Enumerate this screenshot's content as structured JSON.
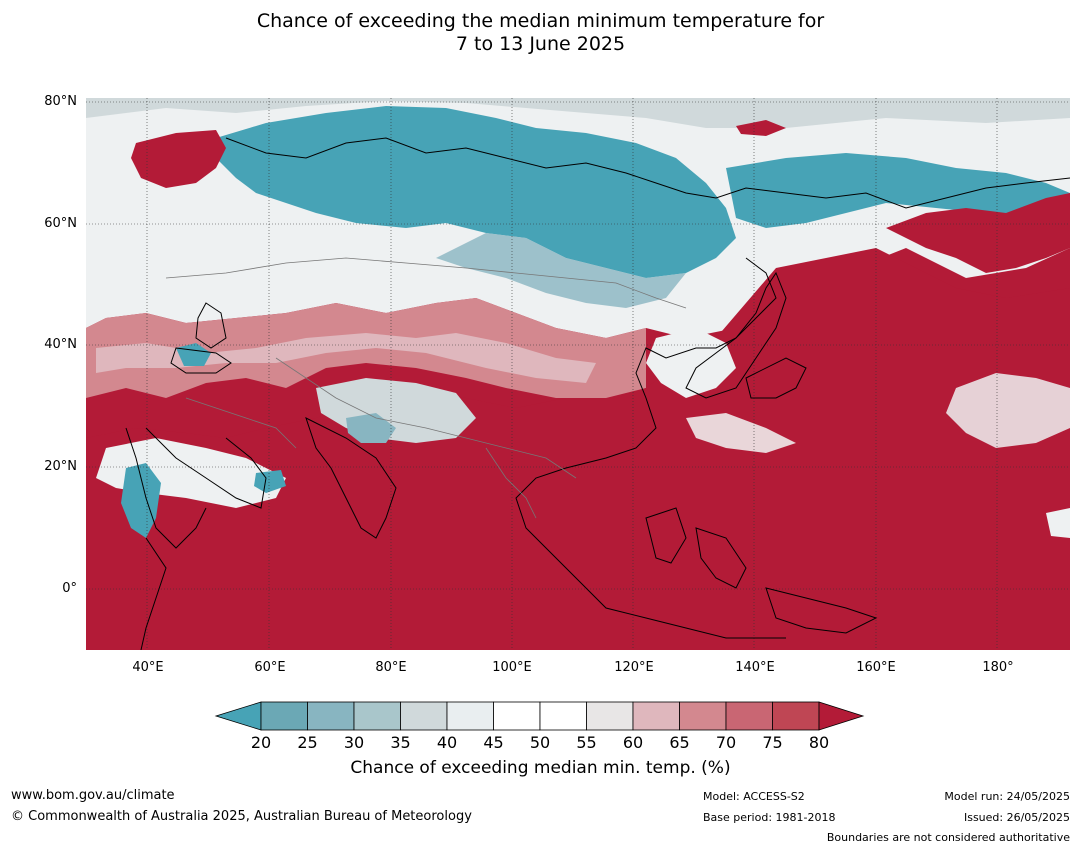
{
  "title_line1": "Chance of exceeding the median minimum temperature for",
  "title_line2": "7 to 13 June 2025",
  "lat_labels": [
    "80°N",
    "60°N",
    "40°N",
    "20°N",
    "0°"
  ],
  "lon_labels": [
    "40°E",
    "60°E",
    "80°E",
    "100°E",
    "120°E",
    "140°E",
    "160°E",
    "180°"
  ],
  "colorbar": {
    "ticks": [
      "20",
      "25",
      "30",
      "35",
      "40",
      "45",
      "50",
      "55",
      "60",
      "65",
      "70",
      "75",
      "80"
    ],
    "colors": [
      "#6ba8b5",
      "#88b5c1",
      "#a9c6cb",
      "#d0d9db",
      "#e9eef0",
      "#ffffff",
      "#ffffff",
      "#e8e6e6",
      "#dfb7bd",
      "#d3888f",
      "#c96673",
      "#bf4654"
    ],
    "low_color": "#47a3b6",
    "high_color": "#b31b37",
    "label": "Chance of exceeding median min. temp. (%)"
  },
  "footer": {
    "website": "www.bom.gov.au/climate",
    "copyright": "© Commonwealth of Australia 2025, Australian Bureau of Meteorology",
    "model": "Model: ACCESS-S2",
    "base_period": "Base period: 1981-2018",
    "model_run": "Model run: 24/05/2025",
    "issued": "Issued: 26/05/2025",
    "disclaimer": "Boundaries are not considered authoritative"
  }
}
